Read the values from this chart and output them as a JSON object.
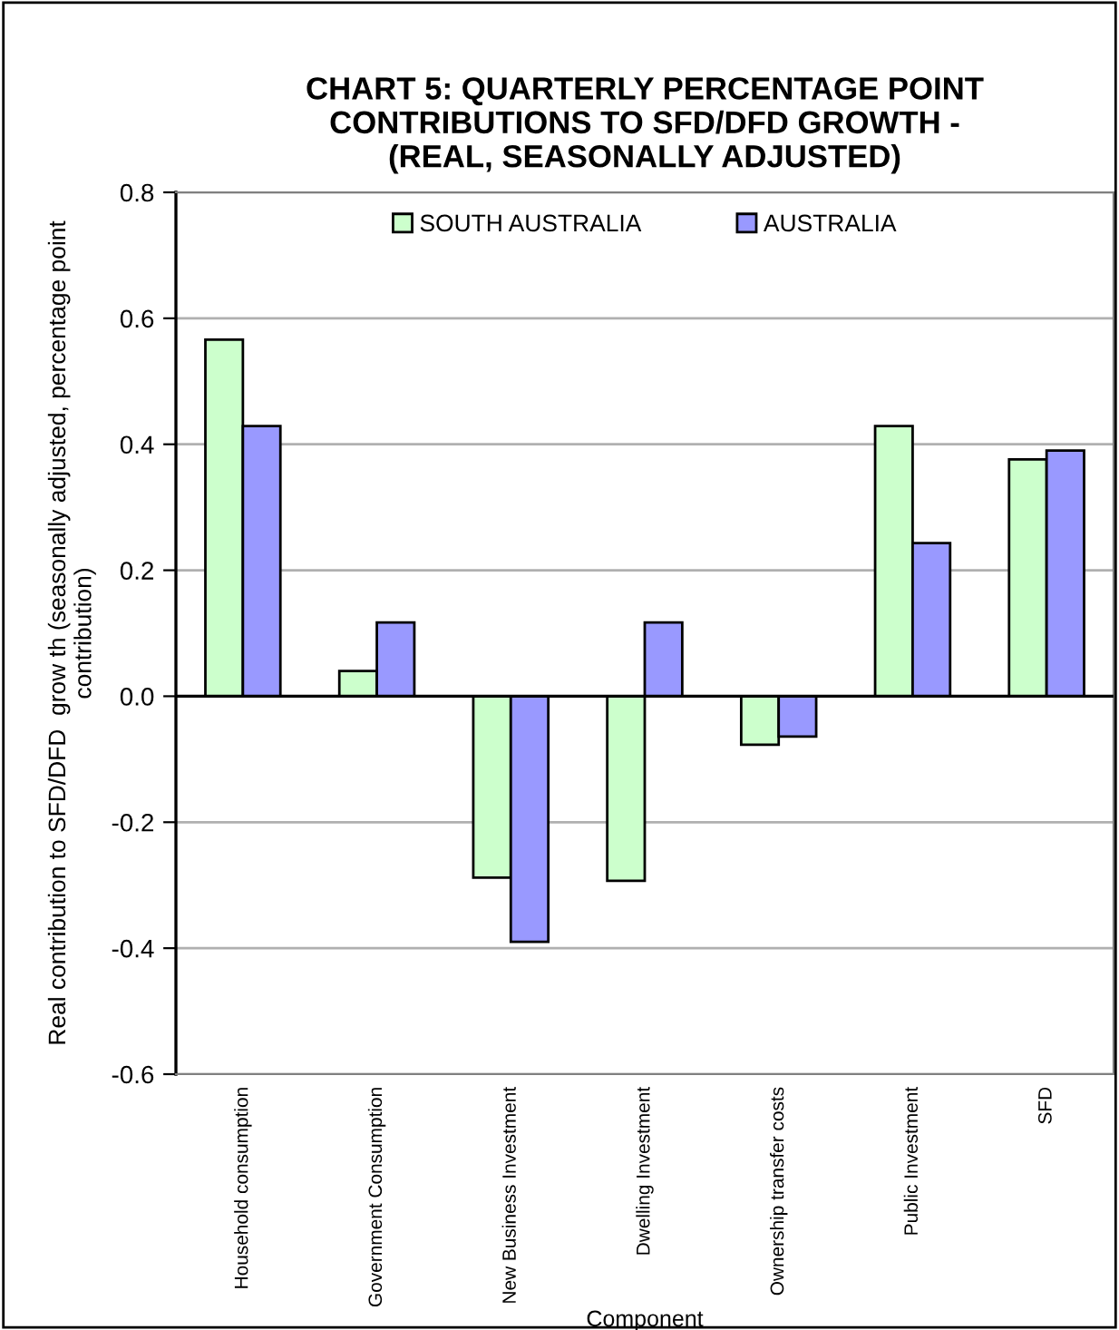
{
  "chart_data": {
    "type": "bar",
    "title": "CHART 5: QUARTERLY PERCENTAGE POINT\nCONTRIBUTIONS TO SFD/DFD GROWTH -\n(REAL, SEASONALLY ADJUSTED)",
    "xlabel": "Component",
    "ylabel": "Real contribution to SFD/DFD  grow th (seasonally adjusted, percentage point\ncontribution)",
    "categories": [
      "Household consumption",
      "Government Consumption",
      "New Business Investment",
      "Dwelling Investment",
      "Ownership transfer costs",
      "Public Investment",
      "SFD"
    ],
    "series": [
      {
        "name": "SOUTH AUSTRALIA",
        "color": "#ccffcc",
        "values": [
          0.566,
          0.04,
          -0.288,
          -0.293,
          -0.077,
          0.429,
          0.376
        ]
      },
      {
        "name": "AUSTRALIA",
        "color": "#9999ff",
        "values": [
          0.429,
          0.117,
          -0.39,
          0.117,
          -0.064,
          0.243,
          0.39
        ]
      }
    ],
    "ylim": [
      -0.6,
      0.8
    ],
    "yticks": [
      {
        "value": -0.6,
        "label": "-0.6"
      },
      {
        "value": -0.4,
        "label": "-0.4"
      },
      {
        "value": -0.2,
        "label": "-0.2"
      },
      {
        "value": 0,
        "label": "0.0"
      },
      {
        "value": 0.2,
        "label": "0.2"
      },
      {
        "value": 0.4,
        "label": "0.4"
      },
      {
        "value": 0.6,
        "label": "0.6"
      },
      {
        "value": 0.8,
        "label": "0.8"
      }
    ],
    "grid": "y",
    "legend": "top"
  }
}
